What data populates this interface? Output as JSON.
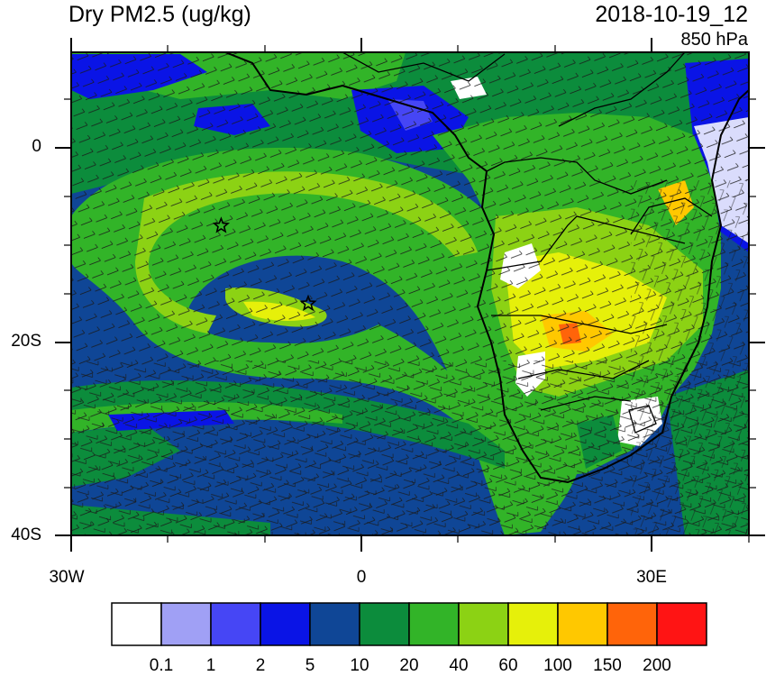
{
  "title": "Dry PM2.5 (ug/kg)",
  "datetime": "2018-10-19_12",
  "level": "850 hPa",
  "lat_labels": [
    "0",
    "20S",
    "40S"
  ],
  "lon_labels": [
    "30W",
    "0",
    "30E"
  ],
  "colorbar": {
    "colors": [
      "#ffffff",
      "#a0a0f5",
      "#4646f5",
      "#0a14e6",
      "#0f4696",
      "#0c8c3c",
      "#32b428",
      "#8cd214",
      "#e6f00a",
      "#ffc800",
      "#ff640a",
      "#ff1414"
    ],
    "labels": [
      "0.1",
      "1",
      "2",
      "5",
      "10",
      "20",
      "40",
      "60",
      "100",
      "150",
      "200"
    ]
  },
  "markers": [
    {
      "name": "star-marker-1",
      "lon": -14.5,
      "lat": -8
    },
    {
      "name": "star-marker-2",
      "lon": -5.5,
      "lat": -16
    }
  ]
}
